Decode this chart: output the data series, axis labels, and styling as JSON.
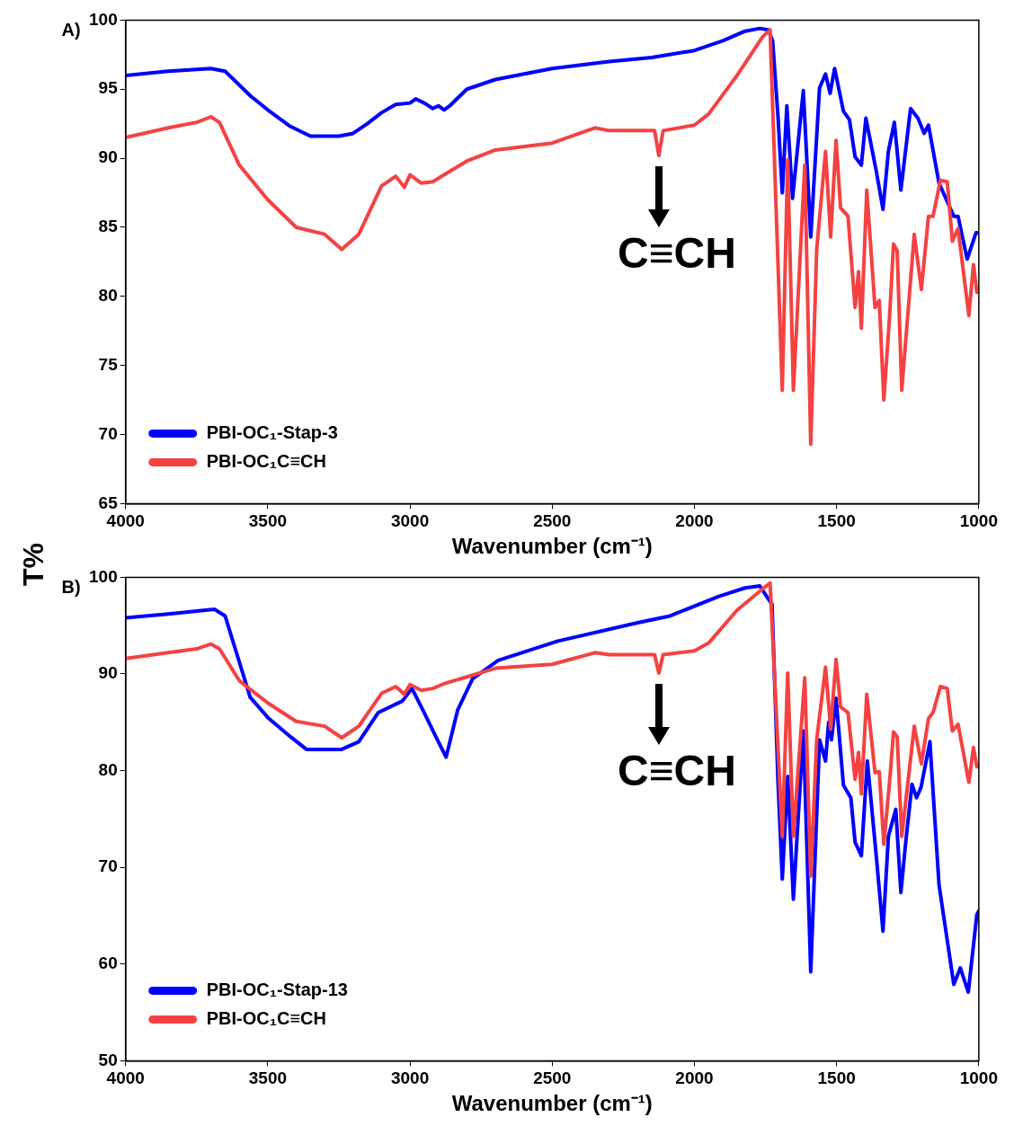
{
  "chart_data": [
    {
      "type": "line",
      "xlabel": "Wavenumber (cm⁻¹)",
      "ylabel": "T%",
      "xlim": [
        4000,
        1000
      ],
      "xticks": [
        4000,
        3500,
        3000,
        2500,
        2000,
        1500,
        1000
      ],
      "ylim": [
        65,
        100
      ],
      "yticks": [
        65,
        70,
        75,
        80,
        85,
        90,
        95,
        100
      ],
      "grid": false,
      "legend": "bottom left",
      "annotations": [
        "A)",
        {
          "text": "C≡CH",
          "x": 2125,
          "y": 90.2
        }
      ],
      "series": [
        {
          "name": "PBI-OC₁-Stap-3",
          "color": "#0000ff",
          "x": [
            4000,
            3850,
            3700,
            3650,
            3560,
            3500,
            3420,
            3350,
            3250,
            3200,
            3150,
            3100,
            3050,
            3000,
            2980,
            2950,
            2920,
            2900,
            2880,
            2860,
            2840,
            2800,
            2700,
            2500,
            2300,
            2150,
            2000,
            1900,
            1822,
            1770,
            1740,
            1725,
            1706,
            1691,
            1675,
            1655,
            1617,
            1591,
            1560,
            1539,
            1523,
            1507,
            1476,
            1455,
            1435,
            1413,
            1397,
            1360,
            1337,
            1318,
            1297,
            1274,
            1240,
            1214,
            1192,
            1177,
            1140,
            1088,
            1073,
            1041,
            1010,
            1000
          ],
          "values": [
            96,
            96.3,
            96.5,
            96.3,
            94.5,
            93.5,
            92.3,
            91.6,
            91.6,
            91.8,
            92.5,
            93.3,
            93.9,
            94,
            94.3,
            94,
            93.6,
            93.8,
            93.5,
            93.8,
            94.2,
            95,
            95.7,
            96.5,
            97,
            97.3,
            97.8,
            98.5,
            99.2,
            99.4,
            99.3,
            98.5,
            93,
            87.5,
            93.8,
            87.1,
            94.9,
            84.3,
            95.1,
            96.1,
            94.7,
            96.5,
            93.4,
            92.8,
            90.1,
            89.5,
            92.9,
            89,
            86.3,
            90.5,
            92.6,
            87.7,
            93.6,
            92.9,
            91.8,
            92.4,
            88.2,
            85.8,
            85.8,
            82.7,
            84.6,
            84.6
          ]
        },
        {
          "name": "PBI-OC₁C≡CH",
          "color": "#f44242",
          "x": [
            4000,
            3850,
            3750,
            3700,
            3670,
            3600,
            3500,
            3400,
            3300,
            3240,
            3180,
            3100,
            3050,
            3020,
            3000,
            2960,
            2920,
            2880,
            2800,
            2700,
            2500,
            2350,
            2300,
            2140,
            2125,
            2110,
            2000,
            1950,
            1850,
            1760,
            1734,
            1691,
            1672,
            1652,
            1612,
            1591,
            1570,
            1539,
            1521,
            1502,
            1486,
            1460,
            1435,
            1423,
            1413,
            1394,
            1365,
            1350,
            1334,
            1313,
            1300,
            1287,
            1271,
            1227,
            1202,
            1177,
            1161,
            1135,
            1111,
            1093,
            1073,
            1035,
            1019,
            1007,
            1000
          ],
          "values": [
            91.5,
            92.2,
            92.6,
            93,
            92.6,
            89.5,
            87,
            85,
            84.5,
            83.4,
            84.5,
            88,
            88.7,
            87.9,
            88.8,
            88.2,
            88.3,
            88.8,
            89.8,
            90.6,
            91.1,
            92.2,
            92,
            92,
            90.2,
            92,
            92.4,
            93.2,
            96,
            98.8,
            99.3,
            73.2,
            89.9,
            73.2,
            89.5,
            69.3,
            83.4,
            90.5,
            84.3,
            91.3,
            86.4,
            85.8,
            79.2,
            81.8,
            77.7,
            87.7,
            79.2,
            79.7,
            72.5,
            78.8,
            83.8,
            83.3,
            73.2,
            84.5,
            80.5,
            85.8,
            85.8,
            88.4,
            88.3,
            84,
            84.9,
            78.6,
            82.3,
            80.3,
            80.5
          ]
        }
      ]
    },
    {
      "type": "line",
      "xlabel": "Wavenumber (cm⁻¹)",
      "xlim": [
        4000,
        1000
      ],
      "xticks": [
        4000,
        3500,
        3000,
        2500,
        2000,
        1500,
        1000
      ],
      "ylim": [
        50,
        100
      ],
      "yticks": [
        50,
        60,
        70,
        80,
        90,
        100
      ],
      "grid": false,
      "legend": "bottom left",
      "annotations": [
        "B)",
        {
          "text": "C≡CH",
          "x": 2125,
          "y": 90.1
        }
      ],
      "series": [
        {
          "name": "PBI-OC₁-Stap-13",
          "color": "#0000ff",
          "x": [
            4000,
            3850,
            3688,
            3650,
            3562,
            3500,
            3420,
            3364,
            3240,
            3180,
            3112,
            3027,
            2993,
            2950,
            2914,
            2873,
            2832,
            2780,
            2690,
            2480,
            2200,
            2086,
            1916,
            1822,
            1770,
            1727,
            1706,
            1691,
            1672,
            1652,
            1617,
            1591,
            1560,
            1539,
            1528,
            1518,
            1502,
            1476,
            1450,
            1435,
            1413,
            1392,
            1360,
            1337,
            1318,
            1292,
            1274,
            1256,
            1235,
            1219,
            1203,
            1172,
            1140,
            1088,
            1065,
            1037,
            1007,
            1000
          ],
          "values": [
            95.8,
            96.2,
            96.7,
            96,
            87.6,
            85.5,
            83.5,
            82.2,
            82.2,
            83,
            86,
            87.2,
            88.5,
            86,
            83.8,
            81.4,
            86.3,
            89.5,
            91.4,
            93.4,
            95.3,
            96,
            98,
            98.9,
            99.1,
            97.2,
            78.8,
            68.8,
            79.4,
            66.7,
            84.1,
            59.2,
            83.2,
            81,
            85,
            83.2,
            87.5,
            78.5,
            77.2,
            72.6,
            71.2,
            81,
            71,
            63.4,
            73.2,
            76,
            67.4,
            72.9,
            78.6,
            77.2,
            78.3,
            83,
            68.2,
            57.9,
            59.6,
            57.1,
            65.1,
            65.5
          ]
        },
        {
          "name": "PBI-OC₁C≡CH",
          "color": "#f44242",
          "x": [
            4000,
            3850,
            3750,
            3700,
            3670,
            3600,
            3500,
            3400,
            3300,
            3240,
            3180,
            3100,
            3050,
            3020,
            3000,
            2960,
            2920,
            2880,
            2800,
            2700,
            2500,
            2350,
            2300,
            2140,
            2125,
            2110,
            2000,
            1950,
            1850,
            1760,
            1734,
            1691,
            1672,
            1652,
            1612,
            1591,
            1570,
            1539,
            1521,
            1502,
            1486,
            1460,
            1435,
            1423,
            1413,
            1394,
            1365,
            1350,
            1334,
            1313,
            1300,
            1287,
            1271,
            1227,
            1202,
            1177,
            1161,
            1135,
            1111,
            1093,
            1073,
            1035,
            1019,
            1007,
            1000
          ],
          "values": [
            91.6,
            92.2,
            92.6,
            93.1,
            92.6,
            89.3,
            87,
            85.1,
            84.6,
            83.4,
            84.6,
            88,
            88.7,
            87.9,
            88.9,
            88.3,
            88.5,
            89,
            89.7,
            90.6,
            91,
            92.2,
            92,
            92,
            90.1,
            92,
            92.4,
            93.2,
            96.6,
            98.8,
            99.4,
            73.2,
            90.1,
            73.2,
            89.6,
            69.1,
            83.2,
            90.7,
            84.3,
            91.5,
            86.6,
            86,
            79.1,
            81.9,
            77.6,
            87.9,
            79.8,
            79.9,
            72.4,
            79.1,
            84,
            83.5,
            73.2,
            84.6,
            80.7,
            85.4,
            86,
            88.7,
            88.5,
            84.1,
            84.8,
            78.8,
            82.4,
            80.4,
            80.5
          ]
        }
      ]
    }
  ]
}
